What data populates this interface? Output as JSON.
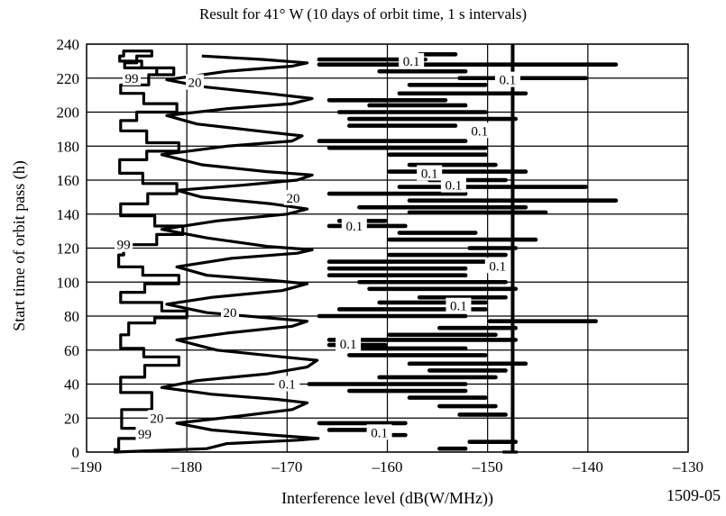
{
  "chart_data": {
    "type": "line",
    "title": "Result for 41° W (10 days of orbit time, 1 s intervals)",
    "xlabel": "Interference level (dB(W/MHz))",
    "ylabel": "Start time of orbit pass (h)",
    "figure_id": "1509-05",
    "xlim": [
      -190,
      -130
    ],
    "ylim": [
      0,
      240
    ],
    "x_ticks": [
      -190,
      -180,
      -170,
      -160,
      -150,
      -140,
      -130
    ],
    "y_ticks": [
      0,
      20,
      40,
      60,
      80,
      100,
      120,
      140,
      160,
      180,
      200,
      220,
      240
    ],
    "x_tick_labels": [
      "–190",
      "–180",
      "–170",
      "–160",
      "–150",
      "–140",
      "–130"
    ],
    "y_tick_labels": [
      "0",
      "20",
      "40",
      "60",
      "80",
      "100",
      "120",
      "140",
      "160",
      "180",
      "200",
      "220",
      "240"
    ],
    "grid": true,
    "threshold_line_x": -147.5,
    "series": [
      {
        "name": "99",
        "x": [
          -187.3,
          -186.8,
          -186.8,
          -184.5,
          -184.5,
          -186.5,
          -186.5,
          -183.5,
          -183.5,
          -186.6,
          -186.6,
          -184.2,
          -184.2,
          -180.8,
          -180.8,
          -184.3,
          -184.3,
          -186.6,
          -186.6,
          -185.8,
          -185.8,
          -183.2,
          -183.2,
          -180.0,
          -180.0,
          -182.5,
          -182.5,
          -186.6,
          -186.6,
          -184.2,
          -184.2,
          -180.8,
          -180.8,
          -184.4,
          -184.4,
          -186.8,
          -186.8,
          -186.3,
          -186.3,
          -183.0,
          -183.0,
          -180.4,
          -180.4,
          -183.2,
          -183.2,
          -186.6,
          -186.6,
          -183.9,
          -183.9,
          -181.0,
          -181.0,
          -184.4,
          -184.4,
          -186.7,
          -186.7,
          -184.0,
          -184.0,
          -180.8,
          -180.8,
          -184.0,
          -184.0,
          -186.6,
          -186.6,
          -185.0,
          -185.0,
          -181.0,
          -181.0,
          -184.3,
          -184.3,
          -186.6,
          -186.6,
          -183.8,
          -183.8,
          -181.3,
          -181.3,
          -184.5,
          -184.5,
          -186.7,
          -186.7,
          -186.3,
          -186.3,
          -183.5,
          -183.5,
          -185.0,
          -185.0,
          -186.2,
          -186.2,
          -183.0,
          -183.0
        ],
        "y": [
          1.5,
          1.5,
          8,
          8,
          14,
          14,
          25,
          25,
          35,
          35,
          44,
          44,
          51,
          51,
          56,
          56,
          61,
          61,
          69,
          69,
          76,
          76,
          79,
          79,
          83,
          83,
          88,
          88,
          94,
          94,
          99,
          99,
          104,
          104,
          109,
          109,
          116,
          116,
          122,
          122,
          128,
          128,
          133,
          133,
          139,
          139,
          146,
          146,
          152,
          152,
          158,
          158,
          164,
          164,
          172,
          172,
          177,
          177,
          182,
          182,
          189,
          189,
          195,
          195,
          200,
          200,
          205,
          205,
          211,
          211,
          216,
          216,
          222,
          222,
          226,
          226,
          230,
          230,
          233,
          233,
          236,
          236,
          233,
          233,
          229,
          229,
          226,
          226,
          222
        ]
      },
      {
        "name": "20",
        "x": [
          -187.3,
          -178.0,
          -176.0,
          -169.0,
          -166.9,
          -171.5,
          -177.5,
          -181.0,
          -175.0,
          -169.5,
          -168.0,
          -171.0,
          -177.5,
          -182.5,
          -179.0,
          -172.0,
          -168.0,
          -167.0,
          -170.5,
          -177.0,
          -181.0,
          -176.0,
          -169.5,
          -168.0,
          -172.0,
          -178.0,
          -182.0,
          -177.5,
          -170.5,
          -168.0,
          -171.5,
          -178.0,
          -181.0,
          -175.5,
          -169.0,
          -167.5,
          -172.0,
          -178.0,
          -182.5,
          -177.0,
          -170.0,
          -168.0,
          -171.5,
          -178.5,
          -181.0,
          -174.5,
          -169.0,
          -167.5,
          -172.0,
          -178.5,
          -182.5,
          -176.0,
          -169.5,
          -168.5,
          -173.0,
          -179.0,
          -182.0,
          -176.0,
          -169.5,
          -167.5,
          -172.0,
          -178.5,
          -182.0,
          -176.0,
          -169.5,
          -168.0,
          -172.5,
          -178.5
        ],
        "y": [
          0,
          2,
          5,
          7,
          8,
          10,
          13,
          17,
          21,
          25,
          29,
          31,
          34,
          38,
          42,
          46,
          50,
          54,
          56,
          60,
          66,
          70,
          74,
          77,
          79,
          82,
          87,
          91,
          95,
          99,
          101,
          104,
          109,
          114,
          117,
          119,
          121,
          126,
          131,
          136,
          140,
          143,
          146,
          150,
          154,
          157,
          160,
          163,
          165,
          169,
          175,
          180,
          183,
          186,
          189,
          193,
          198,
          202,
          205,
          208,
          211,
          215,
          219,
          224,
          227,
          229,
          231,
          233
        ]
      },
      {
        "name": "0.1",
        "x": [
          -148.5,
          -147.0
        ],
        "y": [
          0,
          0
        ]
      }
    ],
    "contour_labels": [
      {
        "text": "99",
        "x": -185.5,
        "y": 220.0
      },
      {
        "text": "99",
        "x": -186.3,
        "y": 122.0
      },
      {
        "text": "99",
        "x": -184.2,
        "y": 10.5
      },
      {
        "text": "20",
        "x": -179.2,
        "y": 217.5
      },
      {
        "text": "20",
        "x": -169.4,
        "y": 149.5
      },
      {
        "text": "20",
        "x": -175.7,
        "y": 82.0
      },
      {
        "text": "20",
        "x": -183.0,
        "y": 20.0
      },
      {
        "text": "0.1",
        "x": -157.6,
        "y": 230.0
      },
      {
        "text": "0.1",
        "x": -148.0,
        "y": 219.0
      },
      {
        "text": "0.1",
        "x": -150.8,
        "y": 189.0
      },
      {
        "text": "0.1",
        "x": -155.8,
        "y": 164.0
      },
      {
        "text": "0.1",
        "x": -153.4,
        "y": 157.0
      },
      {
        "text": "0.1",
        "x": -163.3,
        "y": 133.0
      },
      {
        "text": "0.1",
        "x": -149.0,
        "y": 109.5
      },
      {
        "text": "0.1",
        "x": -152.9,
        "y": 86.0
      },
      {
        "text": "0.1",
        "x": -163.9,
        "y": 63.5
      },
      {
        "text": "0.1",
        "x": -170.0,
        "y": 40.0
      },
      {
        "text": "0.1",
        "x": -160.8,
        "y": 11.5
      }
    ]
  }
}
